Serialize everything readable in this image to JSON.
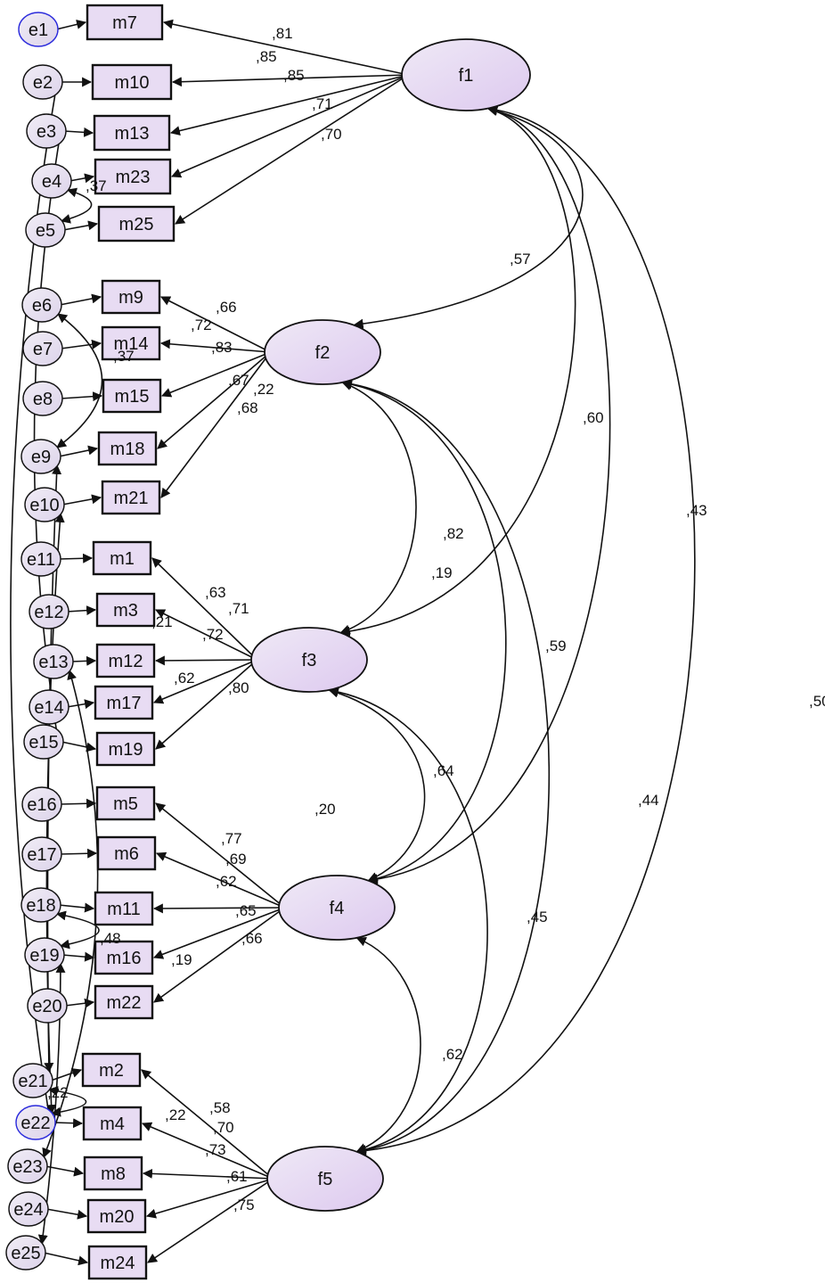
{
  "factors": [
    {
      "id": "f1",
      "label": "f1"
    },
    {
      "id": "f2",
      "label": "f2"
    },
    {
      "id": "f3",
      "label": "f3"
    },
    {
      "id": "f4",
      "label": "f4"
    },
    {
      "id": "f5",
      "label": "f5"
    }
  ],
  "indicators": [
    {
      "id": "m7",
      "label": "m7",
      "factor": "f1",
      "loading": ",81",
      "error": "e1"
    },
    {
      "id": "m10",
      "label": "m10",
      "factor": "f1",
      "loading": ",85",
      "error": "e2"
    },
    {
      "id": "m13",
      "label": "m13",
      "factor": "f1",
      "loading": ",85",
      "error": "e3"
    },
    {
      "id": "m23",
      "label": "m23",
      "factor": "f1",
      "loading": ",71",
      "error": "e4"
    },
    {
      "id": "m25",
      "label": "m25",
      "factor": "f1",
      "loading": ",70",
      "error": "e5"
    },
    {
      "id": "m9",
      "label": "m9",
      "factor": "f2",
      "loading": ",66",
      "error": "e6"
    },
    {
      "id": "m14",
      "label": "m14",
      "factor": "f2",
      "loading": ",72",
      "error": "e7"
    },
    {
      "id": "m15",
      "label": "m15",
      "factor": "f2",
      "loading": ",83",
      "error": "e8"
    },
    {
      "id": "m18",
      "label": "m18",
      "factor": "f2",
      "loading": ",67",
      "error": "e9"
    },
    {
      "id": "m21",
      "label": "m21",
      "factor": "f2",
      "loading": ",68",
      "error": "e10"
    },
    {
      "id": "m1",
      "label": "m1",
      "factor": "f3",
      "loading": ",63",
      "error": "e11"
    },
    {
      "id": "m3",
      "label": "m3",
      "factor": "f3",
      "loading": ",71",
      "error": "e12"
    },
    {
      "id": "m12",
      "label": "m12",
      "factor": "f3",
      "loading": ",72",
      "error": "e13"
    },
    {
      "id": "m17",
      "label": "m17",
      "factor": "f3",
      "loading": ",62",
      "error": "e14"
    },
    {
      "id": "m19",
      "label": "m19",
      "factor": "f3",
      "loading": ",80",
      "error": "e15"
    },
    {
      "id": "m5",
      "label": "m5",
      "factor": "f4",
      "loading": ",77",
      "error": "e16"
    },
    {
      "id": "m6",
      "label": "m6",
      "factor": "f4",
      "loading": ",69",
      "error": "e17"
    },
    {
      "id": "m11",
      "label": "m11",
      "factor": "f4",
      "loading": ",62",
      "error": "e18"
    },
    {
      "id": "m16",
      "label": "m16",
      "factor": "f4",
      "loading": ",65",
      "error": "e19"
    },
    {
      "id": "m22",
      "label": "m22",
      "factor": "f4",
      "loading": ",66",
      "error": "e20"
    },
    {
      "id": "m2",
      "label": "m2",
      "factor": "f5",
      "loading": ",58",
      "error": "e21"
    },
    {
      "id": "m4",
      "label": "m4",
      "factor": "f5",
      "loading": ",70",
      "error": "e22"
    },
    {
      "id": "m8",
      "label": "m8",
      "factor": "f5",
      "loading": ",73",
      "error": "e23"
    },
    {
      "id": "m20",
      "label": "m20",
      "factor": "f5",
      "loading": ",61",
      "error": "e24"
    },
    {
      "id": "m24",
      "label": "m24",
      "factor": "f5",
      "loading": ",75",
      "error": "e25"
    }
  ],
  "factor_covariances": [
    {
      "from": "f1",
      "to": "f2",
      "value": ",57"
    },
    {
      "from": "f1",
      "to": "f3",
      "value": ",60"
    },
    {
      "from": "f1",
      "to": "f4",
      "value": ",43"
    },
    {
      "from": "f1",
      "to": "f5",
      "value": ",50"
    },
    {
      "from": "f2",
      "to": "f3",
      "value": ",82"
    },
    {
      "from": "f2",
      "to": "f4",
      "value": ",59"
    },
    {
      "from": "f2",
      "to": "f5",
      "value": ",44"
    },
    {
      "from": "f3",
      "to": "f4",
      "value": ",64"
    },
    {
      "from": "f3",
      "to": "f5",
      "value": ",45"
    },
    {
      "from": "f4",
      "to": "f5",
      "value": ",62"
    }
  ],
  "error_covariances": [
    {
      "a": "e4",
      "b": "e5",
      "value": ",37"
    },
    {
      "a": "e6",
      "b": "e9",
      "value": ",37"
    },
    {
      "a": "e9",
      "b": "e21",
      "value": ",22"
    },
    {
      "a": "e10",
      "b": "e22",
      "value": ",19"
    },
    {
      "a": "e13",
      "b": "e23",
      "value": ",21"
    },
    {
      "a": "e15",
      "b": "e3",
      "value": ",20"
    },
    {
      "a": "e18",
      "b": "e19",
      "value": ",48"
    },
    {
      "a": "e19",
      "b": "e25",
      "value": ",19"
    },
    {
      "a": "e21",
      "b": "e22",
      "value": ",22"
    },
    {
      "a": "e22",
      "b": "e2",
      "value": ",22"
    }
  ],
  "highlighted_errors": [
    "e1",
    "e22"
  ],
  "colors": {
    "node_fill": "#e8dcf3",
    "highlight": "#2b2bdc",
    "line": "#111111"
  }
}
